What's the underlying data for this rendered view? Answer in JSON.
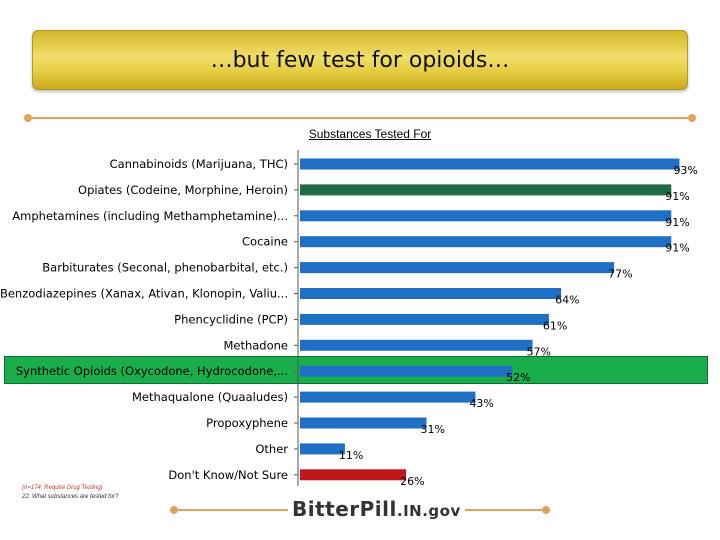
{
  "slide": {
    "title": "…but few test for opioids…",
    "footnote_sample": "(n=174: Require Drug Testing)",
    "footnote_question": "22. What substances are tested for?",
    "logo_text": "BitterPill",
    "logo_domain": ".IN.gov"
  },
  "colors": {
    "default_bar": "#1f6fc5",
    "opiates_bar": "#1f6b45",
    "dontknow_bar": "#c0161c",
    "highlight": "#19ad4c",
    "accent_line": "#e0a35a"
  },
  "chart_data": {
    "type": "bar",
    "orientation": "horizontal",
    "title": "Substances Tested For",
    "xlabel": "",
    "ylabel": "",
    "xlim": [
      0,
      100
    ],
    "grid": false,
    "legend": "none",
    "categories": [
      "Cannabinoids (Marijuana, THC)",
      "Opiates (Codeine, Morphine, Heroin)",
      "Amphetamines (including Methamphetamine)...",
      "Cocaine",
      "Barbiturates (Seconal, phenobarbital, etc.)",
      "Benzodiazepines (Xanax, Ativan, Klonopin, Valiu...",
      "Phencyclidine (PCP)",
      "Methadone",
      "Synthetic Opioids (Oxycodone, Hydrocodone,...",
      "Methaqualone (Quaaludes)",
      "Propoxyphene",
      "Other",
      "Don't Know/Not Sure"
    ],
    "values": [
      93,
      91,
      91,
      91,
      77,
      64,
      61,
      57,
      52,
      43,
      31,
      11,
      26
    ],
    "value_labels": [
      "93%",
      "91%",
      "91%",
      "91%",
      "77%",
      "64%",
      "61%",
      "57%",
      "52%",
      "43%",
      "31%",
      "11%",
      "26%"
    ],
    "bar_colors": [
      "#1f6fc5",
      "#1f6b45",
      "#1f6fc5",
      "#1f6fc5",
      "#1f6fc5",
      "#1f6fc5",
      "#1f6fc5",
      "#1f6fc5",
      "#1f6fc5",
      "#1f6fc5",
      "#1f6fc5",
      "#1f6fc5",
      "#c0161c"
    ],
    "highlighted_category": "Synthetic Opioids (Oxycodone, Hydrocodone,..."
  }
}
